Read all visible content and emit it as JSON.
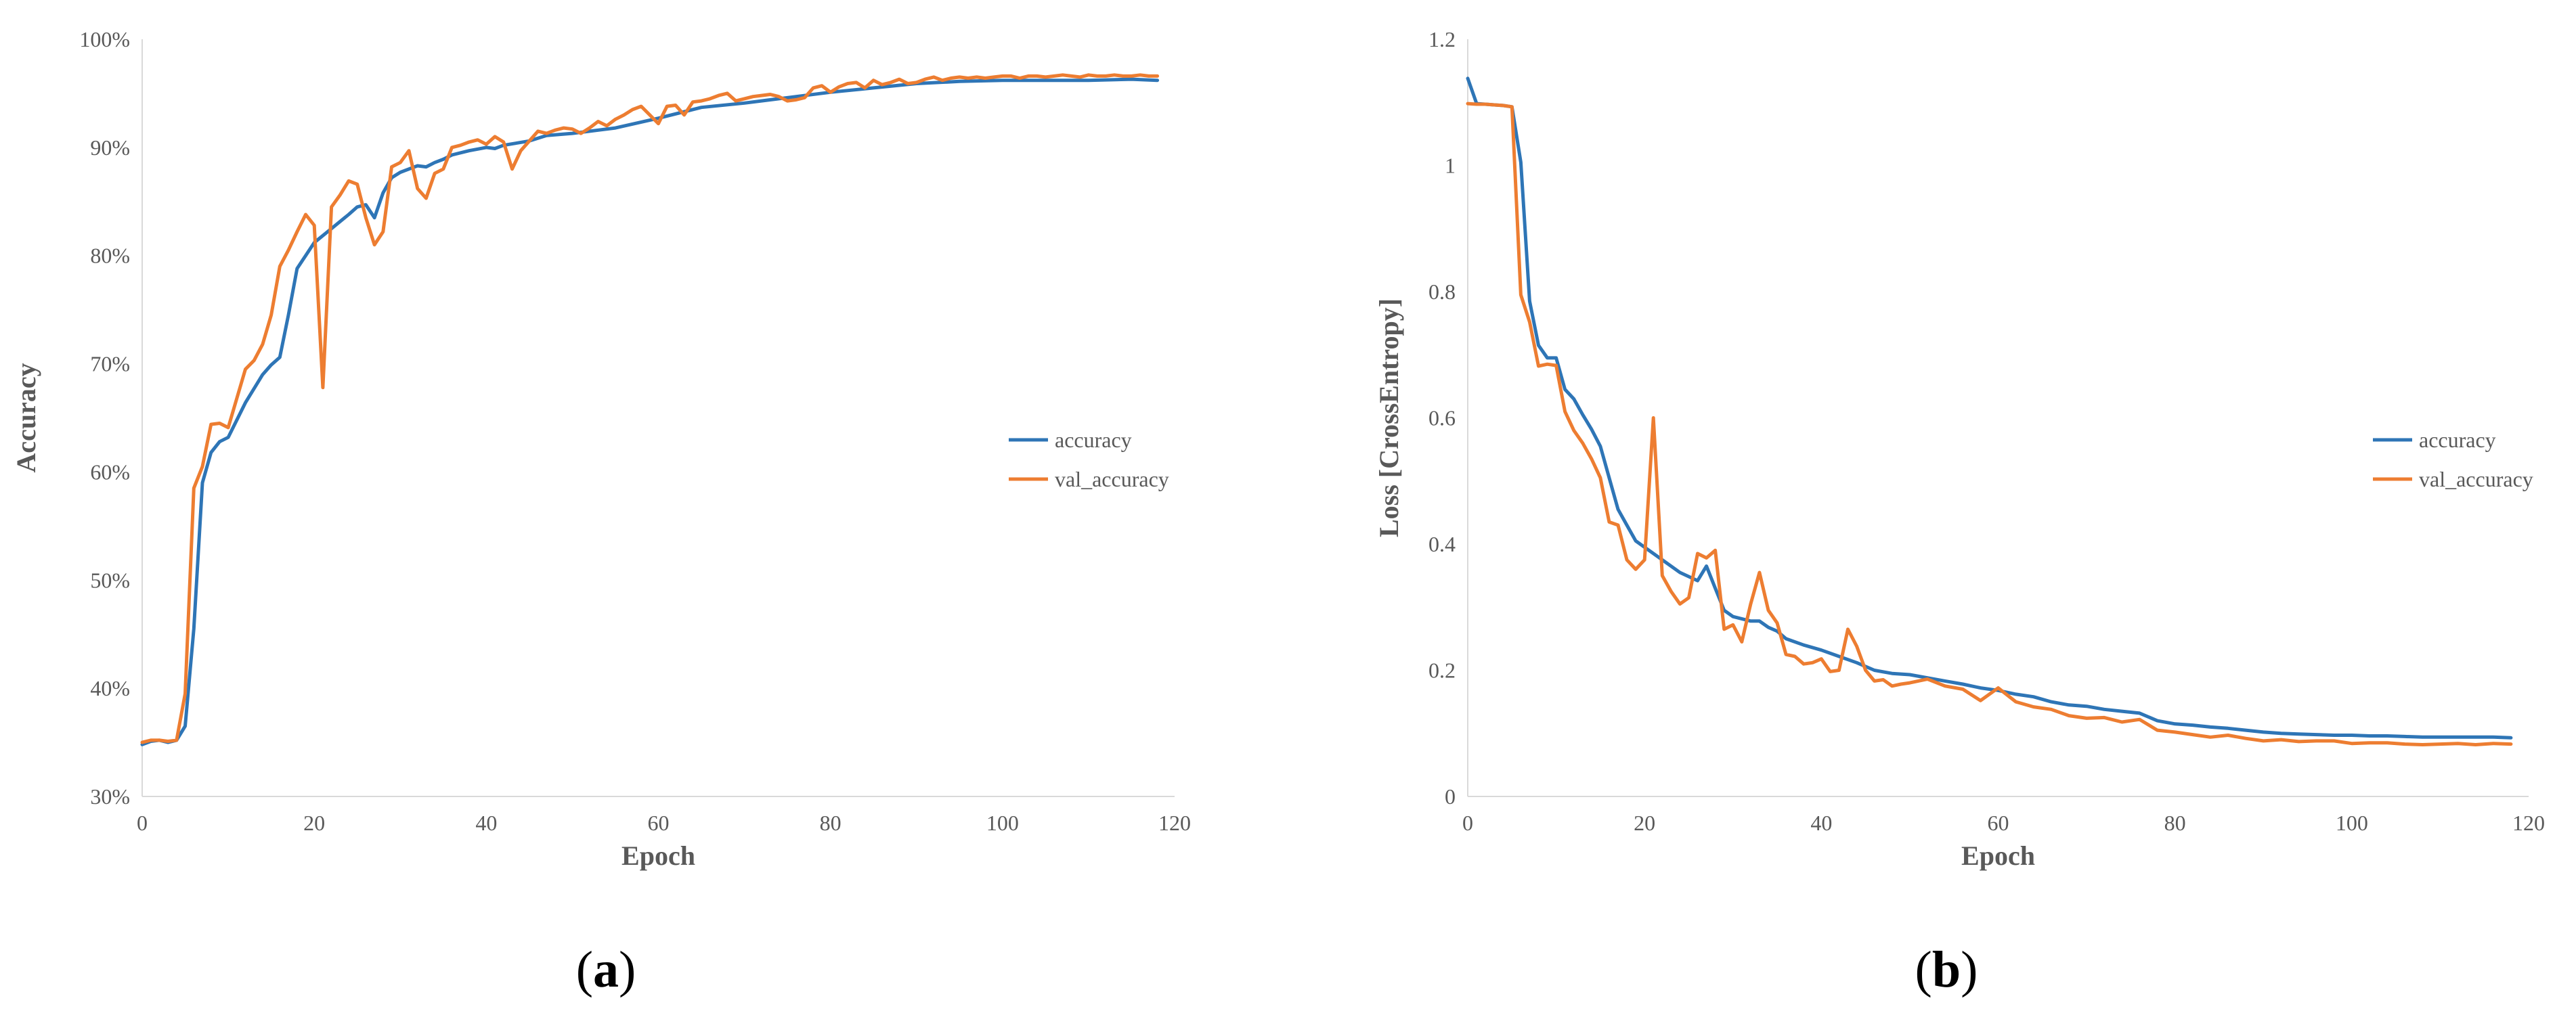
{
  "chart_data": [
    {
      "id": "a",
      "type": "line",
      "panel_label": "a",
      "xlabel": "Epoch",
      "ylabel": "Accuracy",
      "xlim": [
        0,
        120
      ],
      "ylim": [
        0.3,
        1.0
      ],
      "xticks": [
        0,
        20,
        40,
        60,
        80,
        100,
        120
      ],
      "yticks": [
        {
          "v": 0.3,
          "label": "30%"
        },
        {
          "v": 0.4,
          "label": "40%"
        },
        {
          "v": 0.5,
          "label": "50%"
        },
        {
          "v": 0.6,
          "label": "60%"
        },
        {
          "v": 0.7,
          "label": "70%"
        },
        {
          "v": 0.8,
          "label": "80%"
        },
        {
          "v": 0.9,
          "label": "90%"
        },
        {
          "v": 1.0,
          "label": "100%"
        }
      ],
      "legend_position": "right",
      "series": [
        {
          "name": "accuracy",
          "color": "#2E75B6",
          "x": [
            0,
            1,
            2,
            3,
            4,
            5,
            6,
            7,
            8,
            9,
            10,
            12,
            14,
            15,
            16,
            17,
            18,
            19,
            20,
            22,
            24,
            25,
            26,
            27,
            28,
            29,
            30,
            32,
            33,
            34,
            35,
            36,
            38,
            40,
            41,
            42,
            45,
            47,
            50,
            55,
            60,
            65,
            70,
            75,
            80,
            85,
            90,
            95,
            100,
            105,
            110,
            115,
            118
          ],
          "y": [
            0.348,
            0.351,
            0.352,
            0.35,
            0.352,
            0.365,
            0.455,
            0.59,
            0.618,
            0.628,
            0.632,
            0.664,
            0.69,
            0.699,
            0.706,
            0.745,
            0.788,
            0.8,
            0.812,
            0.825,
            0.838,
            0.845,
            0.847,
            0.835,
            0.858,
            0.872,
            0.877,
            0.883,
            0.882,
            0.886,
            0.889,
            0.893,
            0.897,
            0.9,
            0.899,
            0.902,
            0.906,
            0.911,
            0.913,
            0.918,
            0.927,
            0.937,
            0.941,
            0.946,
            0.951,
            0.955,
            0.959,
            0.961,
            0.962,
            0.962,
            0.962,
            0.963,
            0.962
          ]
        },
        {
          "name": "val_accuracy",
          "color": "#ED7D31",
          "x": [
            0,
            1,
            2,
            3,
            4,
            5,
            6,
            7,
            8,
            9,
            10,
            11,
            12,
            13,
            14,
            15,
            16,
            17,
            18,
            19,
            20,
            21,
            22,
            23,
            24,
            25,
            26,
            27,
            28,
            29,
            30,
            31,
            32,
            33,
            34,
            35,
            36,
            37,
            38,
            39,
            40,
            41,
            42,
            43,
            44,
            45,
            46,
            47,
            48,
            49,
            50,
            51,
            52,
            53,
            54,
            55,
            56,
            57,
            58,
            59,
            60,
            61,
            62,
            63,
            64,
            65,
            66,
            67,
            68,
            69,
            70,
            71,
            72,
            73,
            74,
            75,
            76,
            77,
            78,
            79,
            80,
            81,
            82,
            83,
            84,
            85,
            86,
            87,
            88,
            89,
            90,
            91,
            92,
            93,
            94,
            95,
            96,
            97,
            98,
            99,
            100,
            101,
            102,
            103,
            104,
            105,
            106,
            107,
            108,
            109,
            110,
            111,
            112,
            113,
            114,
            115,
            116,
            117,
            118
          ],
          "y": [
            0.35,
            0.352,
            0.352,
            0.351,
            0.352,
            0.395,
            0.585,
            0.605,
            0.644,
            0.645,
            0.641,
            0.668,
            0.695,
            0.703,
            0.718,
            0.745,
            0.79,
            0.805,
            0.822,
            0.838,
            0.828,
            0.678,
            0.845,
            0.856,
            0.869,
            0.866,
            0.835,
            0.81,
            0.822,
            0.882,
            0.886,
            0.897,
            0.862,
            0.853,
            0.876,
            0.88,
            0.9,
            0.902,
            0.905,
            0.907,
            0.903,
            0.91,
            0.905,
            0.88,
            0.897,
            0.906,
            0.915,
            0.913,
            0.916,
            0.918,
            0.917,
            0.913,
            0.918,
            0.924,
            0.92,
            0.926,
            0.93,
            0.935,
            0.938,
            0.93,
            0.922,
            0.938,
            0.939,
            0.93,
            0.942,
            0.943,
            0.945,
            0.948,
            0.95,
            0.943,
            0.945,
            0.947,
            0.948,
            0.949,
            0.947,
            0.943,
            0.944,
            0.946,
            0.955,
            0.957,
            0.951,
            0.956,
            0.959,
            0.96,
            0.955,
            0.962,
            0.958,
            0.96,
            0.963,
            0.959,
            0.96,
            0.963,
            0.965,
            0.962,
            0.964,
            0.965,
            0.964,
            0.965,
            0.964,
            0.965,
            0.966,
            0.966,
            0.964,
            0.966,
            0.966,
            0.965,
            0.966,
            0.967,
            0.966,
            0.965,
            0.967,
            0.966,
            0.966,
            0.967,
            0.966,
            0.966,
            0.967,
            0.966,
            0.966
          ]
        }
      ]
    },
    {
      "id": "b",
      "type": "line",
      "panel_label": "b",
      "xlabel": "Epoch",
      "ylabel": "Loss [CrossEntropy]",
      "xlim": [
        0,
        120
      ],
      "ylim": [
        0,
        1.2
      ],
      "xticks": [
        0,
        20,
        40,
        60,
        80,
        100,
        120
      ],
      "yticks": [
        {
          "v": 0,
          "label": "0"
        },
        {
          "v": 0.2,
          "label": "0.2"
        },
        {
          "v": 0.4,
          "label": "0.4"
        },
        {
          "v": 0.6,
          "label": "0.6"
        },
        {
          "v": 0.8,
          "label": "0.8"
        },
        {
          "v": 1.0,
          "label": "1"
        },
        {
          "v": 1.2,
          "label": "1.2"
        }
      ],
      "legend_position": "right",
      "series": [
        {
          "name": "accuracy",
          "color": "#2E75B6",
          "x": [
            0,
            1,
            2,
            3,
            4,
            5,
            6,
            7,
            8,
            9,
            10,
            11,
            12,
            13,
            14,
            15,
            16,
            17,
            18,
            19,
            20,
            22,
            24,
            26,
            27,
            28,
            29,
            30,
            32,
            33,
            34,
            35,
            36,
            38,
            40,
            42,
            44,
            46,
            48,
            50,
            52,
            54,
            56,
            58,
            60,
            62,
            64,
            66,
            68,
            70,
            72,
            74,
            76,
            78,
            80,
            82,
            84,
            86,
            88,
            90,
            92,
            94,
            96,
            98,
            100,
            102,
            104,
            106,
            108,
            110,
            112,
            114,
            116,
            118
          ],
          "y": [
            1.138,
            1.098,
            1.097,
            1.096,
            1.095,
            1.093,
            1.005,
            0.785,
            0.715,
            0.695,
            0.695,
            0.645,
            0.63,
            0.605,
            0.582,
            0.555,
            0.505,
            0.455,
            0.43,
            0.405,
            0.395,
            0.375,
            0.355,
            0.342,
            0.365,
            0.33,
            0.295,
            0.285,
            0.278,
            0.278,
            0.268,
            0.262,
            0.25,
            0.24,
            0.232,
            0.222,
            0.212,
            0.2,
            0.195,
            0.193,
            0.188,
            0.183,
            0.178,
            0.172,
            0.168,
            0.162,
            0.158,
            0.15,
            0.145,
            0.143,
            0.138,
            0.135,
            0.132,
            0.12,
            0.115,
            0.113,
            0.11,
            0.108,
            0.105,
            0.102,
            0.1,
            0.099,
            0.098,
            0.097,
            0.097,
            0.096,
            0.096,
            0.095,
            0.094,
            0.094,
            0.094,
            0.094,
            0.094,
            0.093
          ]
        },
        {
          "name": "val_accuracy",
          "color": "#ED7D31",
          "x": [
            0,
            1,
            2,
            3,
            4,
            5,
            6,
            7,
            8,
            9,
            10,
            11,
            12,
            13,
            14,
            15,
            16,
            17,
            18,
            19,
            20,
            21,
            22,
            23,
            24,
            25,
            26,
            27,
            28,
            29,
            30,
            31,
            32,
            33,
            34,
            35,
            36,
            37,
            38,
            39,
            40,
            41,
            42,
            43,
            44,
            45,
            46,
            47,
            48,
            49,
            50,
            52,
            54,
            56,
            58,
            60,
            62,
            64,
            66,
            68,
            70,
            72,
            74,
            76,
            78,
            80,
            82,
            84,
            86,
            88,
            90,
            92,
            94,
            96,
            98,
            100,
            102,
            104,
            106,
            108,
            110,
            112,
            114,
            116,
            118
          ],
          "y": [
            1.098,
            1.097,
            1.097,
            1.096,
            1.095,
            1.093,
            0.795,
            0.752,
            0.682,
            0.685,
            0.683,
            0.61,
            0.58,
            0.56,
            0.535,
            0.505,
            0.435,
            0.43,
            0.375,
            0.36,
            0.375,
            0.6,
            0.35,
            0.325,
            0.305,
            0.315,
            0.385,
            0.378,
            0.39,
            0.265,
            0.272,
            0.245,
            0.305,
            0.355,
            0.295,
            0.275,
            0.225,
            0.222,
            0.21,
            0.212,
            0.218,
            0.198,
            0.2,
            0.265,
            0.238,
            0.2,
            0.183,
            0.185,
            0.175,
            0.178,
            0.18,
            0.186,
            0.175,
            0.17,
            0.152,
            0.172,
            0.15,
            0.142,
            0.138,
            0.128,
            0.124,
            0.125,
            0.118,
            0.122,
            0.105,
            0.102,
            0.098,
            0.094,
            0.097,
            0.092,
            0.088,
            0.09,
            0.087,
            0.088,
            0.088,
            0.084,
            0.085,
            0.085,
            0.083,
            0.082,
            0.083,
            0.084,
            0.082,
            0.084,
            0.083
          ]
        }
      ]
    }
  ]
}
